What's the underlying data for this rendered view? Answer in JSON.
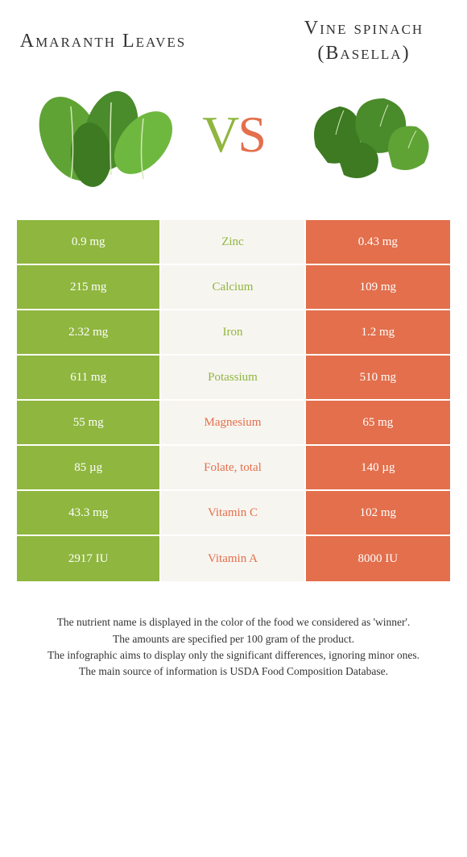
{
  "header": {
    "left_title": "Amaranth Leaves",
    "right_title_line1": "Vine spinach",
    "right_title_line2": "(Basella)",
    "vs_v": "V",
    "vs_s": "S"
  },
  "colors": {
    "left": "#8fb63f",
    "right": "#e36f4c",
    "neutral": "#f7f5f0"
  },
  "rows": [
    {
      "left": "0.9 mg",
      "label": "Zinc",
      "right": "0.43 mg",
      "winner": "left"
    },
    {
      "left": "215 mg",
      "label": "Calcium",
      "right": "109 mg",
      "winner": "left"
    },
    {
      "left": "2.32 mg",
      "label": "Iron",
      "right": "1.2 mg",
      "winner": "left"
    },
    {
      "left": "611 mg",
      "label": "Potassium",
      "right": "510 mg",
      "winner": "left"
    },
    {
      "left": "55 mg",
      "label": "Magnesium",
      "right": "65 mg",
      "winner": "right"
    },
    {
      "left": "85 µg",
      "label": "Folate, total",
      "right": "140 µg",
      "winner": "right"
    },
    {
      "left": "43.3 mg",
      "label": "Vitamin C",
      "right": "102 mg",
      "winner": "right"
    },
    {
      "left": "2917 IU",
      "label": "Vitamin A",
      "right": "8000 IU",
      "winner": "right"
    }
  ],
  "footer": {
    "line1": "The nutrient name is displayed in the color of the food we considered as 'winner'.",
    "line2": "The amounts are specified per 100 gram of the product.",
    "line3": "The infographic aims to display only the significant differences, ignoring minor ones.",
    "line4": "The main source of information is USDA Food Composition Database."
  }
}
